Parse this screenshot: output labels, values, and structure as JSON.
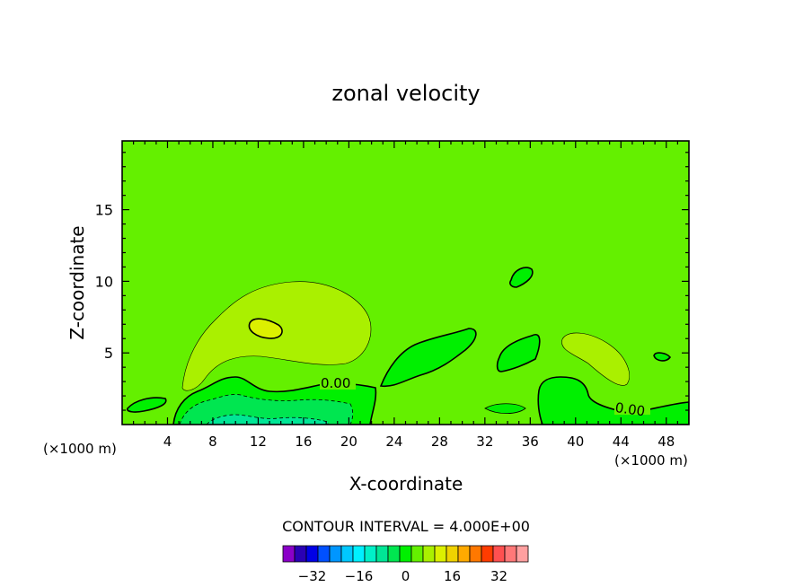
{
  "chart_data": {
    "type": "heatmap",
    "title": "zonal velocity",
    "xlabel": "X-coordinate",
    "ylabel": "Z-coordinate",
    "x_unit": "(×1000 m)",
    "xlim": [
      0,
      50
    ],
    "ylim": [
      0,
      19.8
    ],
    "x_ticks": [
      4,
      8,
      12,
      16,
      20,
      24,
      28,
      32,
      36,
      40,
      44,
      48
    ],
    "y_ticks": [
      5,
      10,
      15
    ],
    "contour_label": "0.00",
    "contour_interval_text": "CONTOUR INTERVAL = 4.000E+00",
    "colorbar": {
      "tick_values": [
        -32,
        -16,
        0,
        16,
        32
      ],
      "tick_labels": [
        "−32",
        "−16",
        "0",
        "16",
        "32"
      ],
      "colors": [
        "#8a00c8",
        "#2a00b4",
        "#0000e6",
        "#0050ff",
        "#0096ff",
        "#00c8ff",
        "#00f0ff",
        "#00f0c8",
        "#00e696",
        "#00e650",
        "#00f000",
        "#64f000",
        "#aaf000",
        "#dcf000",
        "#f0d200",
        "#ffaa00",
        "#ff7800",
        "#ff3c00",
        "#ff5050",
        "#ff7878",
        "#ffa0a0"
      ]
    },
    "field_colors": {
      "background_0_to_4": "#64f000",
      "band_4_to_8": "#aaf000",
      "band_neg4_to_0": "#00f000",
      "band_neg8_to_neg4": "#00e650",
      "band_neg12_to_neg8": "#00e696"
    }
  }
}
